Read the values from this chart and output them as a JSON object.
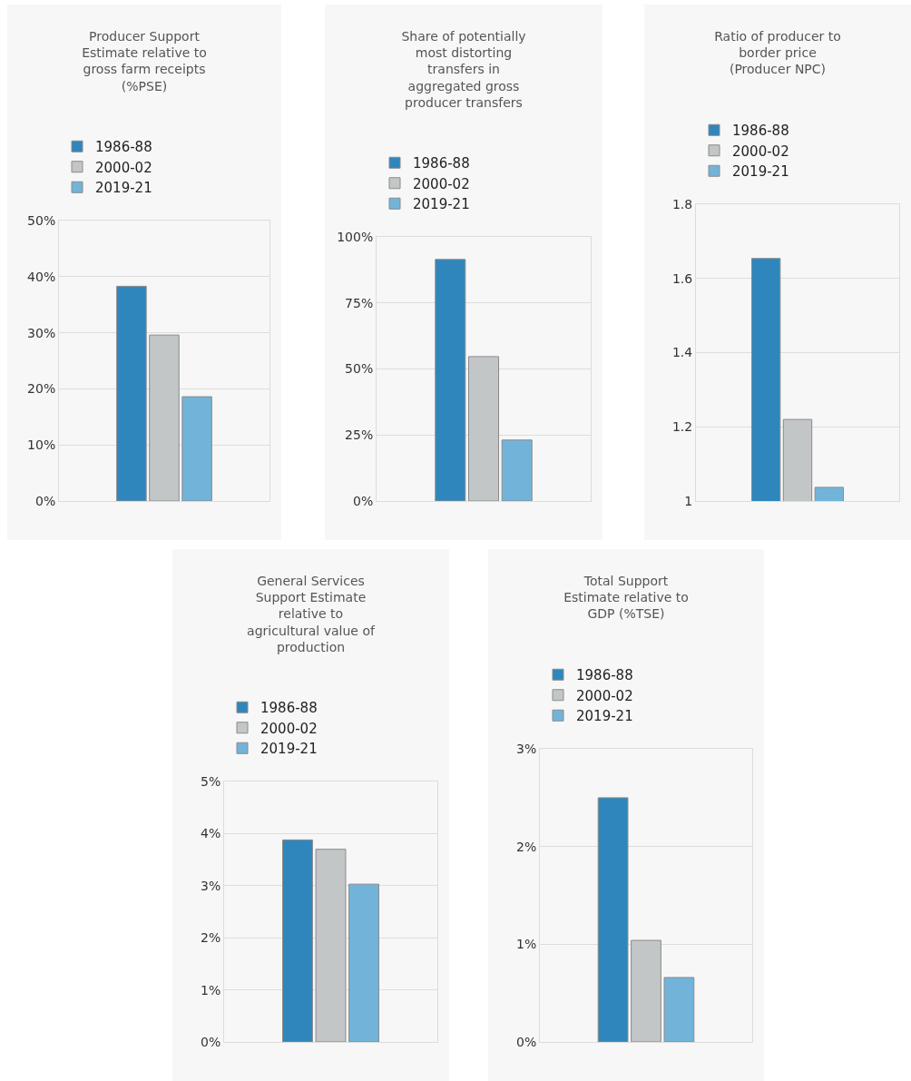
{
  "chart_data": [
    {
      "type": "bar",
      "title": "Producer Support Estimate relative to gross farm receipts (%PSE)",
      "categories": [
        null
      ],
      "series": [
        {
          "name": "1986-88",
          "color": "#2e86bc",
          "values": [
            38.3
          ]
        },
        {
          "name": "2000-02",
          "color": "#c3c6c7",
          "values": [
            29.6
          ]
        },
        {
          "name": "2019-21",
          "color": "#72b4d9",
          "values": [
            18.6
          ]
        }
      ],
      "ylim": [
        0,
        50
      ],
      "yticks": [
        {
          "value": 0,
          "label": "0%"
        },
        {
          "value": 10,
          "label": "10%"
        },
        {
          "value": 20,
          "label": "20%"
        },
        {
          "value": 30,
          "label": "30%"
        },
        {
          "value": 40,
          "label": "40%"
        },
        {
          "value": 50,
          "label": "50%"
        }
      ],
      "grid": "y",
      "legend": "top",
      "tick_labels": "y"
    },
    {
      "type": "bar",
      "title": "Share of potentially most distorting transfers in aggregated gross producer transfers",
      "categories": [
        null
      ],
      "series": [
        {
          "name": "1986-88",
          "color": "#2e86bc",
          "values": [
            91.5
          ]
        },
        {
          "name": "2000-02",
          "color": "#c3c6c7",
          "values": [
            54.7
          ]
        },
        {
          "name": "2019-21",
          "color": "#72b4d9",
          "values": [
            23.1
          ]
        }
      ],
      "ylim": [
        0,
        100
      ],
      "yticks": [
        {
          "value": 0,
          "label": "0%"
        },
        {
          "value": 25,
          "label": "25%"
        },
        {
          "value": 50,
          "label": "50%"
        },
        {
          "value": 75,
          "label": "75%"
        },
        {
          "value": 100,
          "label": "100%"
        }
      ],
      "grid": "y",
      "legend": "top",
      "tick_labels": "y"
    },
    {
      "type": "bar",
      "title": "Ratio of producer to border price (Producer NPC)",
      "categories": [
        null
      ],
      "series": [
        {
          "name": "1986-88",
          "color": "#2e86bc",
          "values": [
            1.654
          ]
        },
        {
          "name": "2000-02",
          "color": "#c3c6c7",
          "values": [
            1.22
          ]
        },
        {
          "name": "2019-21",
          "color": "#72b4d9",
          "values": [
            1.037
          ]
        }
      ],
      "ylim": [
        1,
        1.8
      ],
      "yticks": [
        1,
        1.2,
        1.4,
        1.6,
        1.8
      ],
      "grid": "y",
      "legend": "top",
      "tick_labels": "y"
    },
    {
      "type": "bar",
      "title": "General Services Support Estimate relative to agricultural value of production",
      "categories": [
        null
      ],
      "series": [
        {
          "name": "1986-88",
          "color": "#2e86bc",
          "values": [
            3.88
          ]
        },
        {
          "name": "2000-02",
          "color": "#c3c6c7",
          "values": [
            3.7
          ]
        },
        {
          "name": "2019-21",
          "color": "#72b4d9",
          "values": [
            3.03
          ]
        }
      ],
      "ylim": [
        0,
        5
      ],
      "yticks": [
        {
          "value": 0,
          "label": "0%"
        },
        {
          "value": 1,
          "label": "1%"
        },
        {
          "value": 2,
          "label": "2%"
        },
        {
          "value": 3,
          "label": "3%"
        },
        {
          "value": 4,
          "label": "4%"
        },
        {
          "value": 5,
          "label": "5%"
        }
      ],
      "grid": "y",
      "legend": "top",
      "tick_labels": "y"
    },
    {
      "type": "bar",
      "title": "Total Support Estimate relative to GDP (%TSE)",
      "categories": [
        null
      ],
      "series": [
        {
          "name": "1986-88",
          "color": "#2e86bc",
          "values": [
            2.5
          ]
        },
        {
          "name": "2000-02",
          "color": "#c3c6c7",
          "values": [
            1.04
          ]
        },
        {
          "name": "2019-21",
          "color": "#72b4d9",
          "values": [
            0.66
          ]
        }
      ],
      "ylim": [
        0,
        3
      ],
      "yticks": [
        {
          "value": 0,
          "label": "0%"
        },
        {
          "value": 1,
          "label": "1%"
        },
        {
          "value": 2,
          "label": "2%"
        },
        {
          "value": 3,
          "label": "3%"
        }
      ],
      "grid": "y",
      "legend": "top",
      "tick_labels": "y"
    }
  ]
}
